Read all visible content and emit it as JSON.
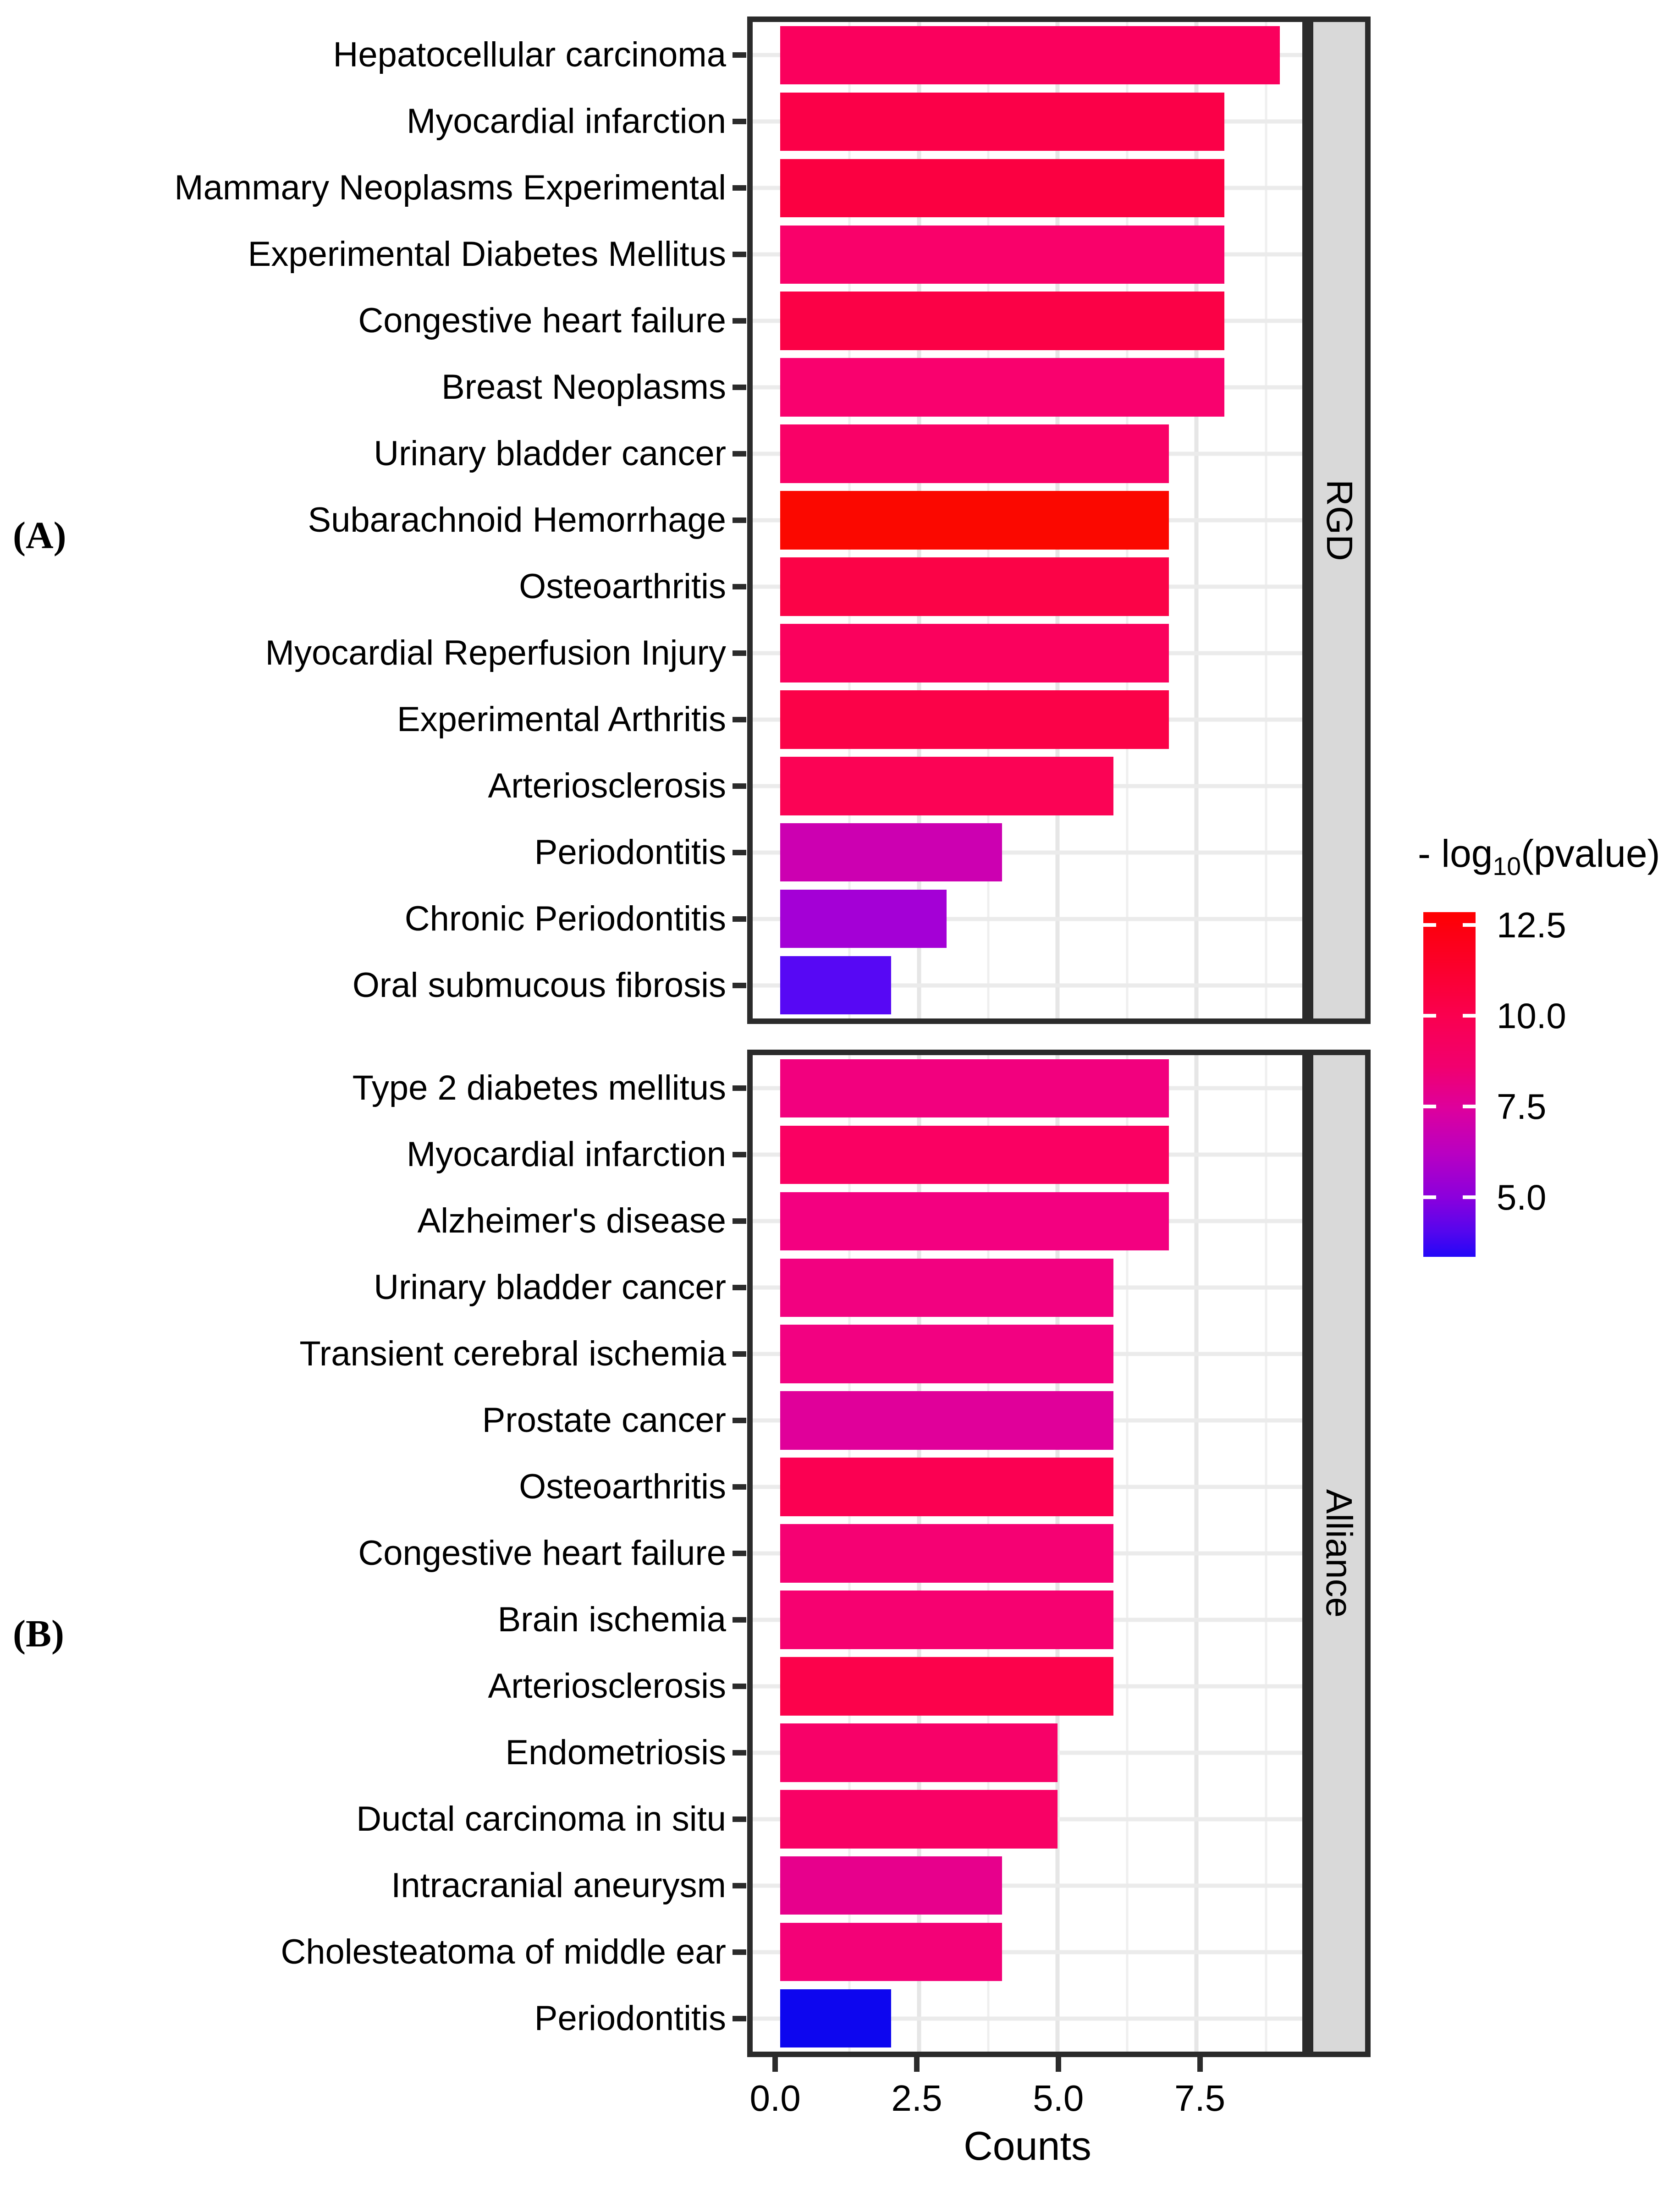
{
  "figure": {
    "panel_a_tag": "(A)",
    "panel_b_tag": "(B)",
    "xlabel": "Counts",
    "x_tick_labels": [
      "0.0",
      "2.5",
      "5.0",
      "7.5"
    ],
    "legend": {
      "title_prefix": "- log",
      "title_sub": "10",
      "title_suffix": "(pvalue)",
      "tick_labels": [
        "12.5",
        "10.0",
        "7.5",
        "5.0"
      ]
    }
  },
  "chart_data": [
    {
      "type": "bar",
      "orientation": "horizontal",
      "facet": "RGD",
      "xlabel": "Counts",
      "x_ticks": [
        0,
        2.5,
        5,
        7.5
      ],
      "x_range": [
        0,
        9.45
      ],
      "grid": true,
      "legend_position": "right",
      "color_scale": {
        "title": "- log10(pvalue)",
        "low_color": "#2307f8",
        "high_color": "#ff0000",
        "ticks": [
          12.5,
          10.0,
          7.5,
          5.0
        ]
      },
      "categories": [
        "Hepatocellular carcinoma",
        "Myocardial infarction",
        "Mammary Neoplasms Experimental",
        "Experimental Diabetes Mellitus",
        "Congestive heart failure",
        "Breast Neoplasms",
        "Urinary bladder cancer",
        "Subarachnoid Hemorrhage",
        "Osteoarthritis",
        "Myocardial Reperfusion Injury",
        "Experimental Arthritis",
        "Arteriosclerosis",
        "Periodontitis",
        "Chronic Periodontitis",
        "Oral submucous fibrosis"
      ],
      "values": [
        9,
        8,
        8,
        8,
        8,
        8,
        7,
        7,
        7,
        7,
        7,
        6,
        4,
        3,
        2
      ],
      "bar_colors": [
        "#fa005d",
        "#fb0048",
        "#fb0041",
        "#f9016a",
        "#fb0146",
        "#f9016e",
        "#f90167",
        "#fb0800",
        "#fb0347",
        "#fa015d",
        "#fb0248",
        "#fb0355",
        "#cc00b1",
        "#a400d6",
        "#5708f4"
      ]
    },
    {
      "type": "bar",
      "orientation": "horizontal",
      "facet": "Alliance",
      "xlabel": "Counts",
      "x_ticks": [
        0,
        2.5,
        5,
        7.5
      ],
      "x_range": [
        0,
        9.45
      ],
      "grid": true,
      "legend_position": "right",
      "color_scale": {
        "title": "- log10(pvalue)",
        "low_color": "#2307f8",
        "high_color": "#ff0000",
        "ticks": [
          12.5,
          10.0,
          7.5,
          5.0
        ]
      },
      "categories": [
        "Type 2 diabetes mellitus",
        "Myocardial infarction",
        "Alzheimer's disease",
        "Urinary bladder cancer",
        "Transient cerebral ischemia",
        "Prostate cancer",
        "Osteoarthritis",
        "Congestive heart failure",
        "Brain ischemia",
        "Arteriosclerosis",
        "Endometriosis",
        "Ductal carcinoma in situ",
        "Intracranial aneurysm",
        "Cholesteatoma of middle ear",
        "Periodontitis"
      ],
      "values": [
        7,
        7,
        7,
        6,
        6,
        6,
        6,
        6,
        6,
        6,
        5,
        5,
        4,
        4,
        2
      ],
      "bar_colors": [
        "#f2007e",
        "#fa0062",
        "#f30080",
        "#f20180",
        "#f20181",
        "#e0009a",
        "#fb0052",
        "#f50173",
        "#f60170",
        "#fc024b",
        "#f70168",
        "#f80165",
        "#e7008c",
        "#f30177",
        "#0d06ef"
      ]
    }
  ]
}
